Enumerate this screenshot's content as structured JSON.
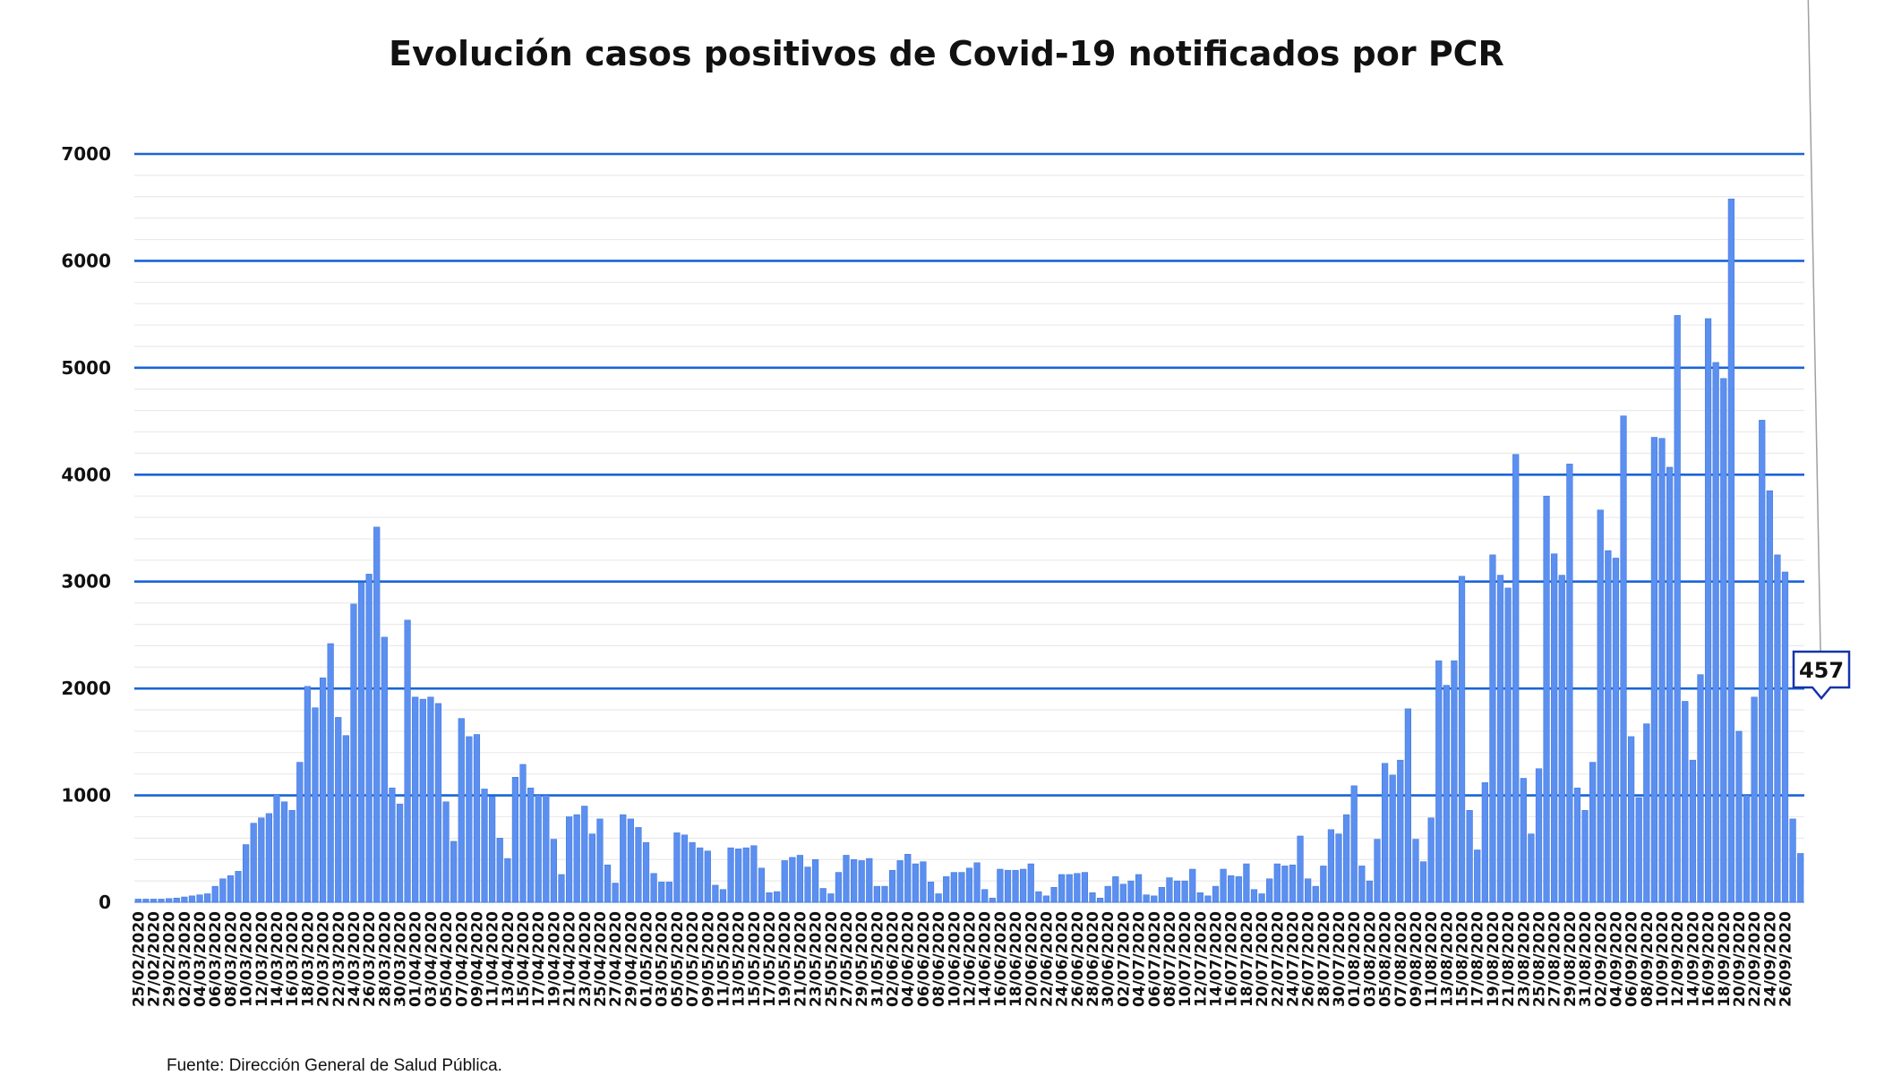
{
  "chart_data": {
    "type": "bar",
    "title": "Evolución casos positivos de Covid-19 notificados por PCR",
    "source": "Fuente: Dirección General de Salud Pública.",
    "xlabel": "",
    "ylabel": "",
    "ylim": [
      0,
      7000
    ],
    "y_ticks": [
      "0",
      "1000",
      "2000",
      "3000",
      "4000",
      "5000",
      "6000",
      "7000"
    ],
    "grid": "major lines every 1000, minor lines every 200",
    "legend": "none",
    "start_date": "2020-02-25",
    "end_date": "2020-09-28",
    "x_tick_labels": [
      "25/02/2020",
      "27/02/2020",
      "29/02/2020",
      "02/03/2020",
      "04/03/2020",
      "06/03/2020",
      "08/03/2020",
      "10/03/2020",
      "12/03/2020",
      "14/03/2020",
      "16/03/2020",
      "18/03/2020",
      "20/03/2020",
      "22/03/2020",
      "24/03/2020",
      "26/03/2020",
      "28/03/2020",
      "30/03/2020",
      "01/04/2020",
      "03/04/2020",
      "05/04/2020",
      "07/04/2020",
      "09/04/2020",
      "11/04/2020",
      "13/04/2020",
      "15/04/2020",
      "17/04/2020",
      "19/04/2020",
      "21/04/2020",
      "23/04/2020",
      "25/04/2020",
      "27/04/2020",
      "29/04/2020",
      "01/05/2020",
      "03/05/2020",
      "05/05/2020",
      "07/05/2020",
      "09/05/2020",
      "11/05/2020",
      "13/05/2020",
      "15/05/2020",
      "17/05/2020",
      "19/05/2020",
      "21/05/2020",
      "23/05/2020",
      "25/05/2020",
      "27/05/2020",
      "29/05/2020",
      "31/05/2020",
      "02/06/2020",
      "04/06/2020",
      "06/06/2020",
      "08/06/2020",
      "10/06/2020",
      "12/06/2020",
      "14/06/2020",
      "16/06/2020",
      "18/06/2020",
      "20/06/2020",
      "22/06/2020",
      "24/06/2020",
      "26/06/2020",
      "28/06/2020",
      "30/06/2020",
      "02/07/2020",
      "04/07/2020",
      "06/07/2020",
      "08/07/2020",
      "10/07/2020",
      "12/07/2020",
      "14/07/2020",
      "16/07/2020",
      "18/07/2020",
      "20/07/2020",
      "22/07/2020",
      "24/07/2020",
      "26/07/2020",
      "28/07/2020",
      "30/07/2020",
      "01/08/2020",
      "03/08/2020",
      "05/08/2020",
      "07/08/2020",
      "09/08/2020",
      "11/08/2020",
      "13/08/2020",
      "15/08/2020",
      "17/08/2020",
      "19/08/2020",
      "21/08/2020",
      "23/08/2020",
      "25/08/2020",
      "27/08/2020",
      "29/08/2020",
      "31/08/2020",
      "02/09/2020",
      "04/09/2020",
      "06/09/2020",
      "08/09/2020",
      "10/09/2020",
      "12/09/2020",
      "14/09/2020",
      "16/09/2020",
      "18/09/2020",
      "20/09/2020",
      "22/09/2020",
      "24/09/2020",
      "26/09/2020"
    ],
    "values": [
      30,
      30,
      30,
      30,
      35,
      40,
      50,
      60,
      70,
      80,
      150,
      220,
      250,
      290,
      540,
      740,
      790,
      830,
      1010,
      940,
      860,
      1310,
      2020,
      1820,
      2100,
      2420,
      1730,
      1560,
      2790,
      2990,
      3070,
      3510,
      2480,
      1070,
      920,
      2640,
      1920,
      1900,
      1920,
      1860,
      940,
      570,
      1720,
      1550,
      1570,
      1060,
      990,
      600,
      410,
      1170,
      1290,
      1070,
      1000,
      1000,
      590,
      260,
      800,
      820,
      900,
      640,
      780,
      350,
      180,
      820,
      780,
      700,
      560,
      270,
      190,
      190,
      650,
      630,
      560,
      510,
      480,
      160,
      120,
      510,
      500,
      510,
      530,
      320,
      90,
      100,
      390,
      420,
      440,
      330,
      400,
      130,
      80,
      280,
      440,
      400,
      390,
      410,
      150,
      150,
      300,
      390,
      450,
      360,
      380,
      190,
      80,
      240,
      280,
      280,
      320,
      370,
      120,
      40,
      310,
      300,
      300,
      310,
      360,
      100,
      60,
      140,
      260,
      260,
      270,
      280,
      90,
      40,
      150,
      240,
      170,
      200,
      260,
      70,
      60,
      140,
      230,
      200,
      200,
      310,
      90,
      60,
      150,
      310,
      250,
      240,
      360,
      120,
      80,
      220,
      360,
      340,
      350,
      620,
      220,
      150,
      340,
      680,
      640,
      820,
      1090,
      340,
      200,
      590,
      1300,
      1190,
      1330,
      1810,
      590,
      380,
      790,
      2260,
      2030,
      2260,
      3050,
      860,
      490,
      1120,
      3250,
      3060,
      2940,
      4190,
      1160,
      640,
      1250,
      3800,
      3260,
      3060,
      4100,
      1070,
      860,
      1310,
      3670,
      3290,
      3220,
      4550,
      1550,
      980,
      1670,
      4350,
      4340,
      4070,
      5490,
      1880,
      1330,
      2130,
      5460,
      5050,
      4900,
      6580,
      1600,
      1000,
      1920,
      4510,
      3850,
      3250,
      3090,
      780,
      457
    ],
    "highlight": {
      "index": 217,
      "label": "457"
    }
  }
}
